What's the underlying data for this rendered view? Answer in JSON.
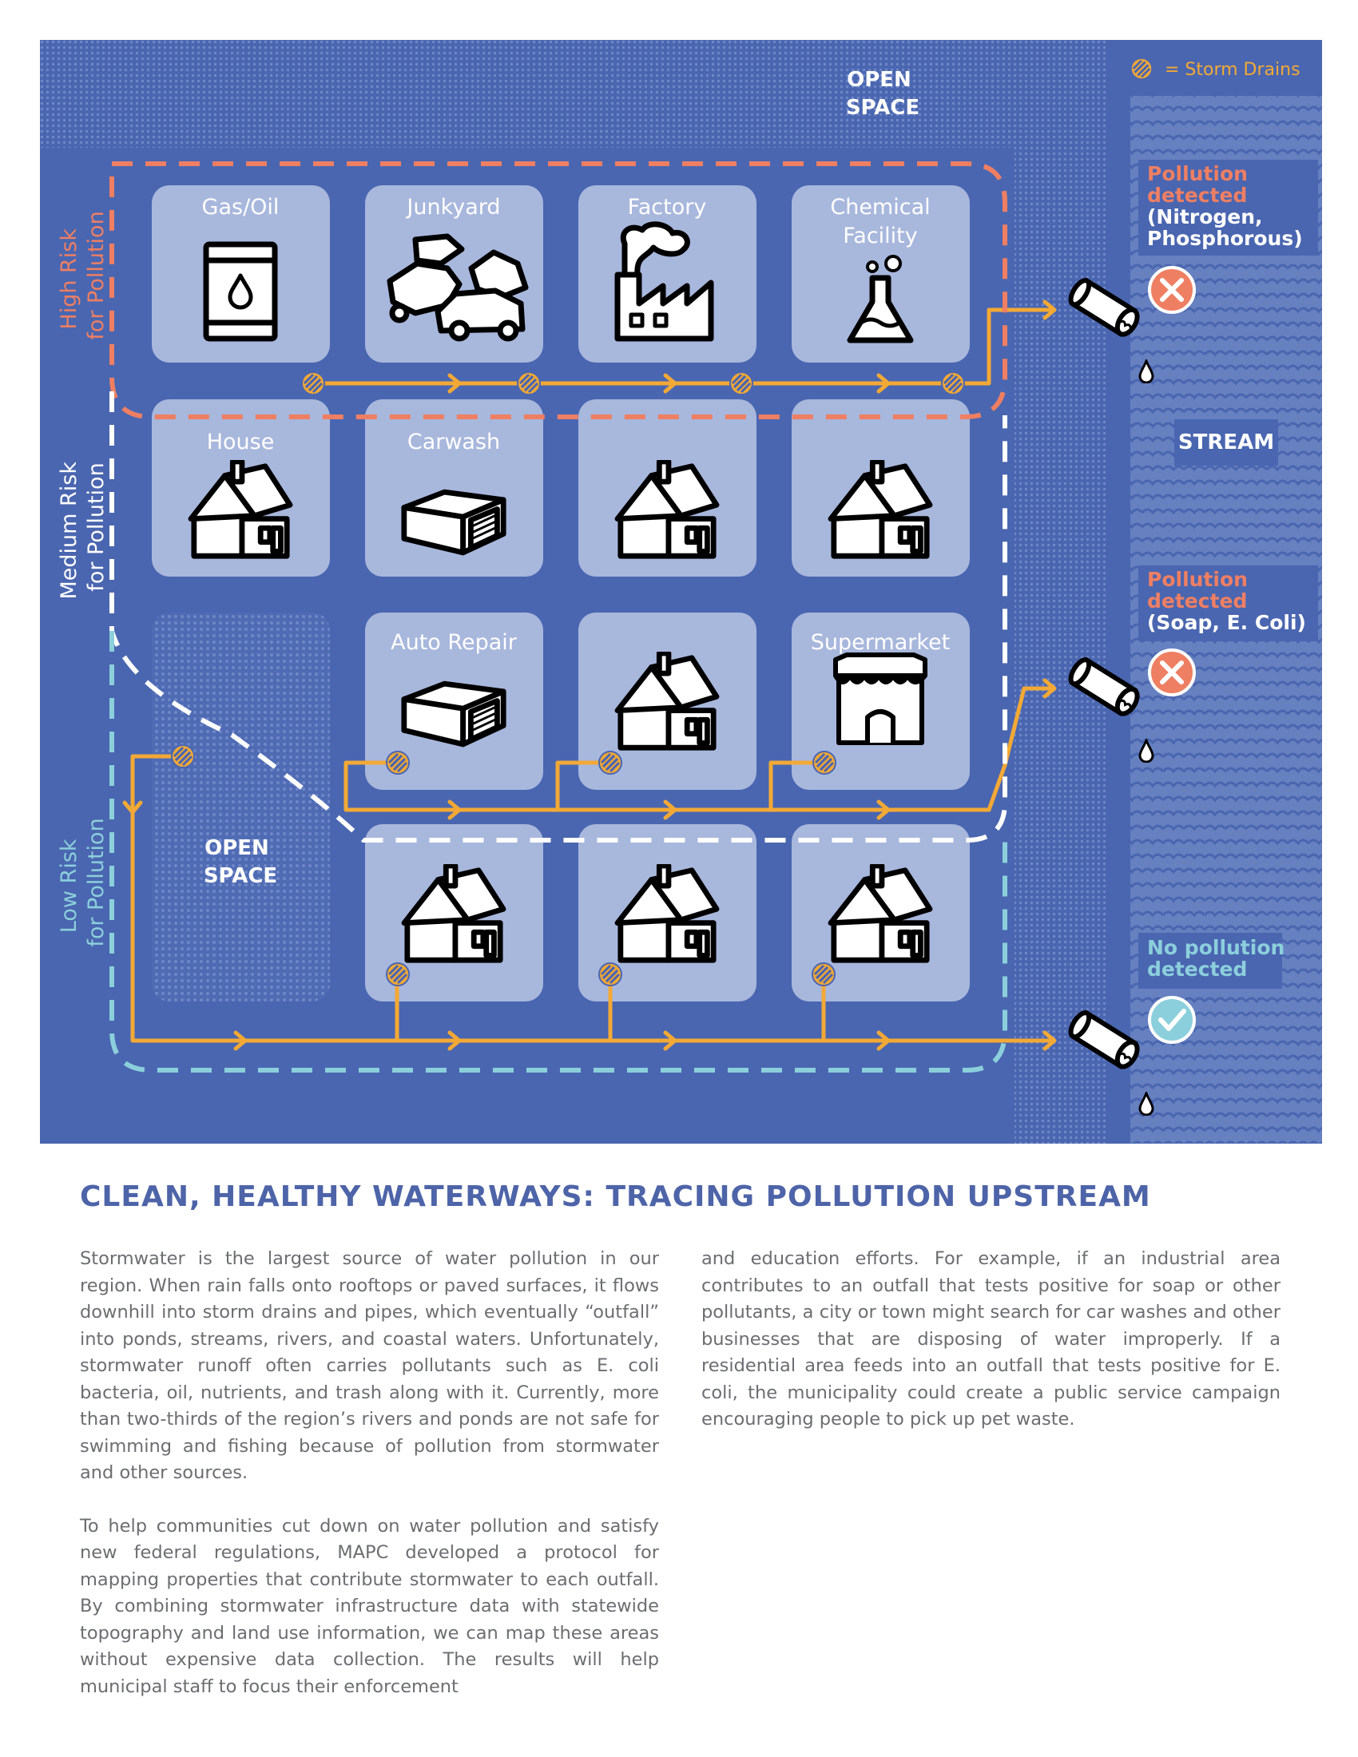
{
  "legend": {
    "icon": "storm-drain-icon",
    "label": "= Storm Drains"
  },
  "open_space_top": [
    "OPEN",
    "SPACE"
  ],
  "open_space_inner": [
    "OPEN",
    "SPACE"
  ],
  "stream_label": "STREAM",
  "risk_labels": {
    "high": [
      "High Risk",
      "for Pollution"
    ],
    "medium": [
      "Medium Risk",
      "for Pollution"
    ],
    "low": [
      "Low Risk",
      "for Pollution"
    ]
  },
  "properties": {
    "gas_oil": "Gas/Oil",
    "junkyard": "Junkyard",
    "factory": "Factory",
    "chemical": [
      "Chemical",
      "Facility"
    ],
    "house": "House",
    "carwash": "Carwash",
    "auto_repair": "Auto Repair",
    "supermarket": "Supermarket"
  },
  "outfalls": [
    {
      "title": [
        "Pollution",
        "detected"
      ],
      "detail": [
        "(Nitrogen,",
        "Phosphorous)"
      ],
      "status": "fail",
      "status_icon": "x-circle-icon"
    },
    {
      "title": [
        "Pollution",
        "detected"
      ],
      "detail": [
        "(Soap, E. Coli)"
      ],
      "status": "fail",
      "status_icon": "x-circle-icon"
    },
    {
      "title": [
        "No pollution",
        "detected"
      ],
      "detail": [],
      "status": "pass",
      "status_icon": "check-circle-icon"
    }
  ],
  "colors": {
    "background": "#4a66b0",
    "tile": "#a8b7dc",
    "pipe": "#f3a935",
    "high_risk": "#ef7f63",
    "medium_risk": "#ffffff",
    "low_risk": "#8ccfdc",
    "heading": "#4e64a8",
    "body_text": "#6b6d70"
  },
  "article": {
    "title": "CLEAN, HEALTHY WATERWAYS: TRACING POLLUTION UPSTREAM",
    "paragraphs": [
      "Stormwater is the largest source of water pollution in our region. When rain falls onto rooftops or paved surfaces, it flows downhill into storm drains and pipes, which eventually “outfall” into ponds, streams, rivers, and coastal waters. Unfortunately, stormwater runoff often carries pollutants such as E. coli bacteria, oil, nutrients, and trash along with it. Currently, more than two-thirds of the region’s rivers and ponds are not safe for swimming and fishing because of pollution from stormwater and other sources.",
      "To help communities cut down on water pollution and satisfy new federal regulations, MAPC developed a protocol for mapping properties that contribute stormwater to each outfall. By combining stormwater infrastructure data with statewide topography and land use information, we can map these areas without expensive data collection. The results will help municipal staff to focus their enforcement",
      "and education efforts. For example, if an industrial area contributes to an outfall that tests positive for soap or other pollutants, a city or town might search for car washes and other businesses that are disposing of water improperly. If a residential area feeds into an outfall that tests positive for E. coli, the municipality could create a public service campaign encouraging people to pick up pet waste."
    ]
  }
}
